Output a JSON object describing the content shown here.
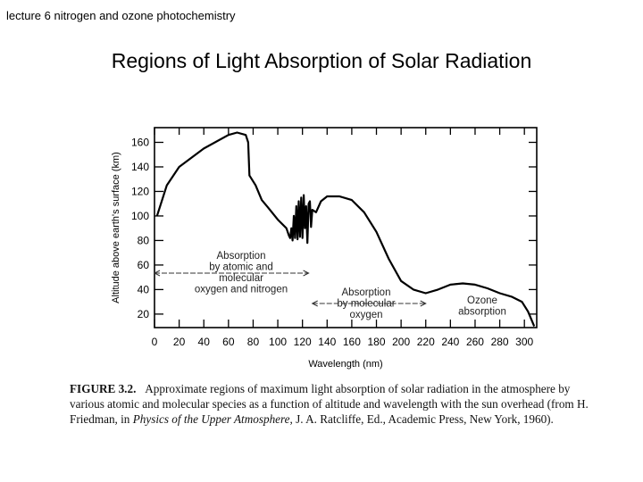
{
  "slide": {
    "header": "lecture 6 nitrogen and ozone photochemistry",
    "title": "Regions of Light Absorption of Solar Radiation"
  },
  "caption": {
    "label": "FIGURE 3.2.",
    "text_1": "Approximate regions of maximum light absorption of solar radiation in the atmosphere by various atomic and molecular species as a function of altitude and wavelength with the sun overhead (from H. Friedman, in ",
    "book": "Physics of the Upper Atmosphere",
    "text_2": ", J. A. Ratcliffe, Ed., Academic Press, New York, 1960)."
  },
  "chart_data": {
    "type": "line",
    "title": "",
    "xlabel": "Wavelength (nm)",
    "ylabel": "Altitude above earth's surface (km)",
    "xlim": [
      0,
      310
    ],
    "ylim": [
      9,
      172
    ],
    "xticks": [
      0,
      20,
      40,
      60,
      80,
      100,
      120,
      140,
      160,
      180,
      200,
      220,
      240,
      260,
      280,
      300
    ],
    "yticks": [
      20,
      40,
      60,
      80,
      100,
      120,
      140,
      160
    ],
    "grid": false,
    "color": "#000000",
    "series": [
      {
        "x": [
          2,
          10,
          20,
          40,
          60,
          67,
          74,
          76,
          77,
          82,
          87,
          92,
          100,
          107,
          109,
          110,
          111,
          112,
          113,
          114,
          115,
          116,
          117,
          118,
          119,
          120,
          121,
          122,
          123,
          124,
          125,
          126,
          127,
          128,
          131,
          135,
          140,
          150,
          160,
          170,
          180,
          190,
          200,
          210,
          220,
          230,
          240,
          250,
          260,
          270,
          280,
          290,
          298,
          303,
          308
        ],
        "y": [
          100,
          125,
          140,
          155,
          166,
          168,
          166,
          160,
          133,
          125,
          113,
          107,
          97,
          90,
          84,
          82,
          90,
          80,
          100,
          82,
          108,
          81,
          112,
          83,
          115,
          82,
          117,
          90,
          108,
          78,
          110,
          112,
          91,
          105,
          103,
          112,
          116,
          116,
          113,
          103,
          87,
          65,
          47,
          40,
          37,
          40,
          44,
          45,
          44,
          41,
          37,
          34,
          30,
          22,
          10
        ]
      }
    ],
    "annotations": [
      {
        "lines": [
          "Absorption",
          "by atomic and",
          "molecular",
          "oxygen and nitrogen"
        ],
        "x_range": [
          0,
          125
        ]
      },
      {
        "lines": [
          "Absorption",
          "by molecular",
          "oxygen"
        ],
        "x_range": [
          128,
          220
        ]
      },
      {
        "lines": [
          "Ozone",
          "absorption"
        ]
      }
    ]
  }
}
